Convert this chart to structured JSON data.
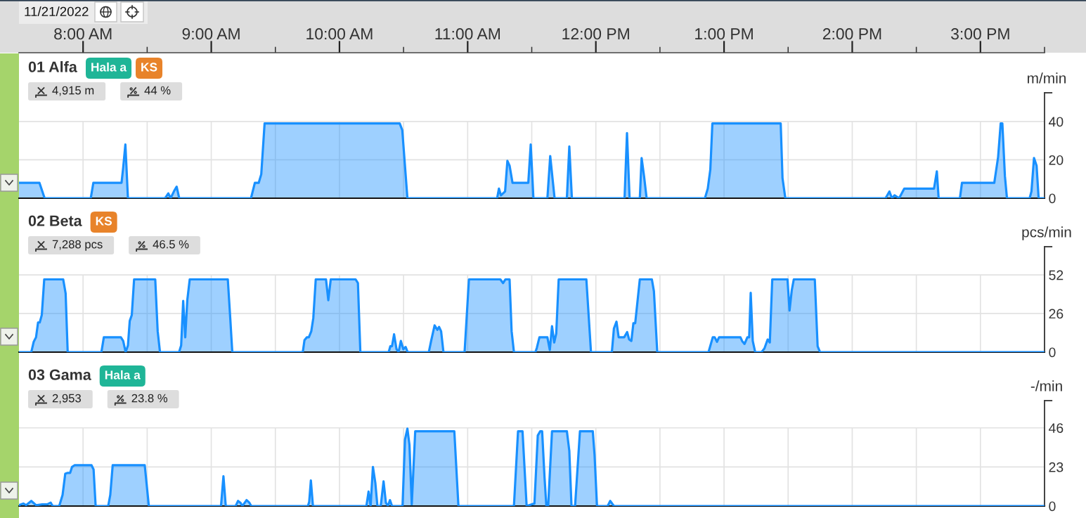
{
  "chart_data": [
    {
      "type": "area",
      "title": "01 Alfa",
      "subtitle": "11/21/2022",
      "ylabel": "m/min",
      "annotations": [
        "Hala a",
        "KS",
        "4,915 m",
        "44 %"
      ],
      "x": [
        7.5,
        7.66,
        7.7,
        8.06,
        8.08,
        8.3,
        8.313,
        8.33,
        8.35,
        8.64,
        8.665,
        8.683,
        8.712,
        8.73,
        8.75,
        9.31,
        9.34,
        9.37,
        9.39,
        9.416,
        10.47,
        10.49,
        10.53,
        11.23,
        11.244,
        11.26,
        11.292,
        11.31,
        11.327,
        11.35,
        11.473,
        11.492,
        11.513,
        11.622,
        11.644,
        11.678,
        11.774,
        11.793,
        11.813,
        12.224,
        12.243,
        12.263,
        12.343,
        12.357,
        12.376,
        12.396,
        12.851,
        12.873,
        12.893,
        12.909,
        13.442,
        13.456,
        13.478,
        14.26,
        14.29,
        14.31,
        14.33,
        14.366,
        14.406,
        14.638,
        14.66,
        14.674,
        14.84,
        14.856,
        15.108,
        15.138,
        15.158,
        15.171,
        15.191,
        15.207,
        15.384,
        15.398,
        15.418,
        15.438,
        15.454,
        15.5
      ],
      "series": [
        {
          "color": "#1890ff",
          "values": [
            8,
            8,
            0,
            0,
            8,
            8,
            16,
            28,
            0,
            0,
            2.5,
            0,
            4,
            6,
            0,
            0,
            8,
            8,
            12.5,
            39,
            39,
            35.5,
            0,
            0,
            5,
            1.5,
            3.5,
            19.5,
            17,
            8,
            8,
            28,
            0,
            0,
            22,
            0,
            0,
            27,
            0,
            0,
            34,
            0,
            0,
            21,
            11.5,
            0,
            0,
            5,
            15,
            39,
            39,
            10.5,
            0,
            0,
            3.5,
            0,
            1.5,
            0,
            5,
            5,
            14,
            0,
            0,
            8,
            8,
            21.5,
            39,
            39,
            11.5,
            0,
            0,
            3.5,
            21,
            17,
            0,
            0
          ]
        }
      ],
      "xlim": [
        7.5,
        15.5
      ],
      "xticks": [
        {
          "value": 8,
          "label": "8:00 AM"
        },
        {
          "value": 8.5,
          "label": null
        },
        {
          "value": 9,
          "label": "9:00 AM"
        },
        {
          "value": 9.5,
          "label": null
        },
        {
          "value": 10,
          "label": "10:00 AM"
        },
        {
          "value": 10.5,
          "label": null
        },
        {
          "value": 11,
          "label": "11:00 AM"
        },
        {
          "value": 11.5,
          "label": null
        },
        {
          "value": 12,
          "label": "12:00 PM"
        },
        {
          "value": 12.5,
          "label": null
        },
        {
          "value": 13,
          "label": "1:00 PM"
        },
        {
          "value": 13.5,
          "label": null
        },
        {
          "value": 14,
          "label": "2:00 PM"
        },
        {
          "value": 14.5,
          "label": null
        },
        {
          "value": 15,
          "label": "3:00 PM"
        },
        {
          "value": 15.5,
          "label": null
        }
      ],
      "ylim": [
        0,
        55
      ],
      "yticks": [
        0,
        20,
        40,
        {
          "value": 55,
          "label": null
        }
      ],
      "grid": true
    },
    {
      "type": "area",
      "title": "02 Beta",
      "ylabel": "pcs/min",
      "annotations": [
        "KS",
        "7,288 pcs",
        "46.5 %"
      ],
      "x": [
        7.5,
        7.596,
        7.615,
        7.633,
        7.649,
        7.662,
        7.678,
        7.697,
        7.845,
        7.864,
        7.88,
        8.143,
        8.162,
        8.295,
        8.313,
        8.332,
        8.35,
        8.364,
        8.38,
        8.398,
        8.563,
        8.582,
        8.6,
        8.749,
        8.765,
        8.781,
        8.797,
        8.813,
        8.832,
        9.129,
        9.148,
        9.164,
        9.714,
        9.727,
        9.746,
        9.761,
        9.78,
        9.796,
        9.815,
        9.895,
        9.913,
        9.932,
        10.126,
        10.144,
        10.163,
        10.384,
        10.397,
        10.41,
        10.426,
        10.445,
        10.461,
        10.479,
        10.498,
        10.516,
        10.532,
        10.697,
        10.715,
        10.742,
        10.764,
        10.777,
        10.793,
        10.811,
        10.976,
        11.01,
        11.255,
        11.276,
        11.295,
        11.327,
        11.343,
        11.361,
        11.529,
        11.54,
        11.56,
        11.622,
        11.641,
        11.658,
        11.675,
        11.691,
        11.71,
        11.926,
        11.962,
        12.125,
        12.141,
        12.161,
        12.178,
        12.221,
        12.244,
        12.26,
        12.277,
        12.293,
        12.307,
        12.343,
        12.437,
        12.453,
        12.479,
        12.879,
        12.912,
        12.927,
        12.945,
        12.961,
        13.128,
        13.141,
        13.16,
        13.182,
        13.196,
        13.208,
        13.224,
        13.243,
        13.293,
        13.315,
        13.34,
        13.357,
        13.376,
        13.495,
        13.511,
        13.528,
        13.544,
        13.708,
        13.73,
        13.749,
        15.5
      ],
      "series": [
        {
          "color": "#1890ff",
          "values": [
            0,
            0,
            7,
            10,
            20,
            20,
            25,
            49,
            49,
            39.5,
            0,
            0,
            10,
            10,
            7.5,
            0,
            4.5,
            21,
            25,
            49,
            49,
            14,
            0,
            0,
            4.5,
            34.5,
            10,
            35,
            49,
            49,
            23,
            0,
            0,
            8,
            10,
            10,
            14,
            23,
            49,
            49,
            35,
            49,
            49,
            46.5,
            0,
            0,
            4,
            4,
            12,
            2,
            0,
            7.5,
            2,
            3.5,
            0,
            0,
            7.5,
            18,
            15,
            17,
            14,
            0,
            0,
            49,
            49,
            46.5,
            49,
            49,
            14,
            0,
            0,
            3,
            10,
            10,
            1.5,
            17.5,
            6.5,
            12.5,
            49,
            49,
            0,
            0,
            16,
            20.5,
            10,
            10,
            13.5,
            8.5,
            7.5,
            19.5,
            19.5,
            49,
            49,
            41,
            0,
            0,
            10,
            10,
            7,
            10,
            10,
            7.5,
            5.5,
            10,
            10,
            40,
            7.5,
            0,
            0,
            2.5,
            8.5,
            6.5,
            49,
            49,
            28,
            41.5,
            49,
            49,
            4,
            0,
            0
          ]
        }
      ],
      "xlim": [
        7.5,
        15.5
      ],
      "xticks": [
        {
          "value": 8,
          "label": null
        },
        {
          "value": 8.5,
          "label": null
        },
        {
          "value": 9,
          "label": null
        },
        {
          "value": 9.5,
          "label": null
        },
        {
          "value": 10,
          "label": null
        },
        {
          "value": 10.5,
          "label": null
        },
        {
          "value": 11,
          "label": null
        },
        {
          "value": 11.5,
          "label": null
        },
        {
          "value": 12,
          "label": null
        },
        {
          "value": 12.5,
          "label": null
        },
        {
          "value": 13,
          "label": null
        },
        {
          "value": 13.5,
          "label": null
        },
        {
          "value": 14,
          "label": null
        },
        {
          "value": 14.5,
          "label": null
        },
        {
          "value": 15,
          "label": null
        },
        {
          "value": 15.5,
          "label": null
        }
      ],
      "ylim": [
        0,
        71
      ],
      "yticks": [
        0,
        26,
        52,
        {
          "value": 71,
          "label": null
        }
      ],
      "grid": true,
      "tick_labels": "y"
    },
    {
      "type": "area",
      "title": "03 Gama",
      "ylabel": "-/min",
      "annotations": [
        "Hala a",
        "2,953",
        "23.8 %"
      ],
      "x": [
        7.5,
        7.534,
        7.556,
        7.596,
        7.633,
        7.681,
        7.72,
        7.747,
        7.763,
        7.814,
        7.84,
        7.861,
        7.88,
        7.899,
        7.914,
        7.933,
        8.066,
        8.082,
        8.098,
        8.196,
        8.212,
        8.231,
        8.481,
        8.513,
        9.076,
        9.095,
        9.113,
        9.19,
        9.209,
        9.227,
        9.243,
        9.275,
        9.297,
        9.312,
        9.754,
        9.764,
        9.777,
        9.793,
        10.21,
        10.227,
        10.243,
        10.261,
        10.28,
        10.296,
        10.322,
        10.344,
        10.362,
        10.378,
        10.394,
        10.41,
        10.492,
        10.511,
        10.53,
        10.546,
        10.564,
        10.591,
        10.896,
        10.928,
        11.361,
        11.393,
        11.428,
        11.46,
        11.521,
        11.547,
        11.566,
        11.581,
        11.6,
        11.614,
        11.628,
        11.658,
        11.774,
        11.793,
        11.81,
        11.838,
        11.876,
        11.976,
        11.99,
        12.009,
        12.092,
        12.112,
        12.141,
        15.5
      ],
      "series": [
        {
          "color": "#1890ff",
          "values": [
            0.5,
            1.5,
            0.5,
            3,
            0.5,
            1,
            1,
            2,
            0,
            0,
            6.5,
            19,
            19.5,
            19.5,
            23,
            24,
            24,
            21.5,
            0,
            0,
            6.5,
            24,
            24,
            0,
            0,
            17.5,
            0,
            0,
            3,
            2,
            0,
            3.5,
            2,
            0,
            0,
            2.5,
            15,
            0,
            0,
            8.5,
            0,
            23,
            13.5,
            0,
            0,
            14.5,
            2,
            0,
            3.5,
            0,
            0,
            39,
            45.5,
            36,
            1,
            44,
            44,
            0,
            0,
            44,
            44,
            0,
            1.5,
            41.5,
            44,
            44,
            16.5,
            0,
            0,
            44,
            44,
            32.5,
            0,
            0,
            44,
            44,
            30,
            0,
            0,
            3,
            0,
            0
          ]
        }
      ],
      "xlim": [
        7.5,
        15.5
      ],
      "xticks": [
        {
          "value": 8,
          "label": null
        },
        {
          "value": 8.5,
          "label": null
        },
        {
          "value": 9,
          "label": null
        },
        {
          "value": 9.5,
          "label": null
        },
        {
          "value": 10,
          "label": null
        },
        {
          "value": 10.5,
          "label": null
        },
        {
          "value": 11,
          "label": null
        },
        {
          "value": 11.5,
          "label": null
        },
        {
          "value": 12,
          "label": null
        },
        {
          "value": 12.5,
          "label": null
        },
        {
          "value": 13,
          "label": null
        },
        {
          "value": 13.5,
          "label": null
        },
        {
          "value": 14,
          "label": null
        },
        {
          "value": 14.5,
          "label": null
        },
        {
          "value": 15,
          "label": null
        },
        {
          "value": 15.5,
          "label": null
        }
      ],
      "ylim": [
        0,
        62
      ],
      "yticks": [
        0,
        23,
        46,
        {
          "value": 62,
          "label": null
        }
      ],
      "grid": true,
      "tick_labels": "y"
    }
  ]
}
